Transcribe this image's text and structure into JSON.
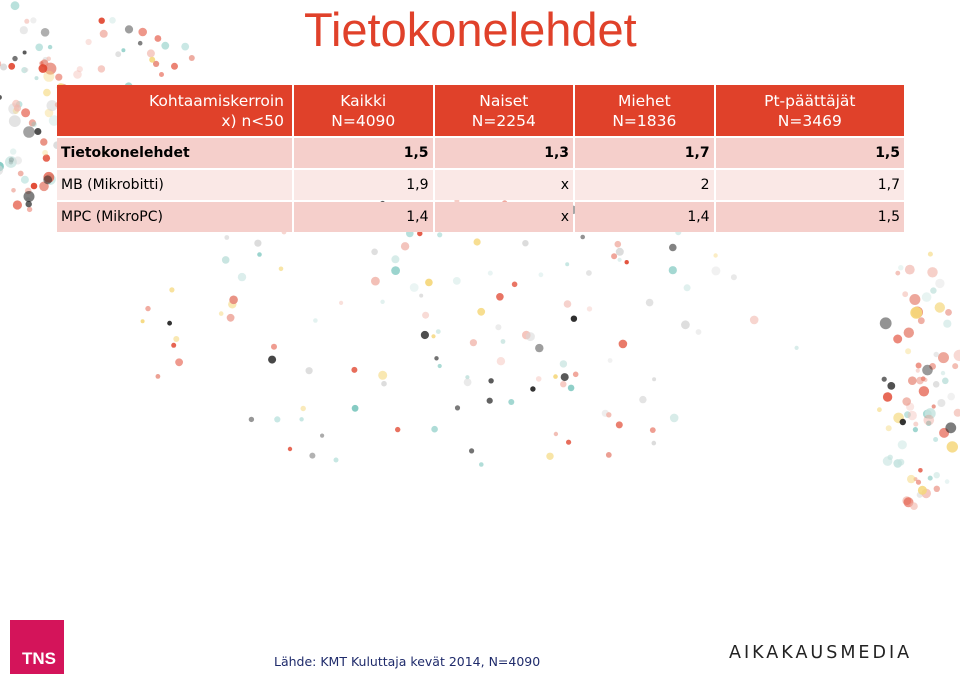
{
  "title": "Tietokonelehdet",
  "table": {
    "header": [
      [
        "Kohtaamiskerroin",
        "x) n<50"
      ],
      [
        "Kaikki",
        "N=4090"
      ],
      [
        "Naiset",
        "N=2254"
      ],
      [
        "Miehet",
        "N=1836"
      ],
      [
        "Pt-päättäjät",
        "N=3469"
      ]
    ],
    "rows": [
      {
        "label": "Tietokonelehdet",
        "values": [
          "1,5",
          "1,3",
          "1,7",
          "1,5"
        ],
        "bold": true
      },
      {
        "label": "MB (Mikrobitti)",
        "values": [
          "1,9",
          "x",
          "2",
          "1,7"
        ],
        "bold": false
      },
      {
        "label": "MPC (MikroPC)",
        "values": [
          "1,4",
          "x",
          "1,4",
          "1,5"
        ],
        "bold": false
      }
    ]
  },
  "source": "Lähde: KMT Kuluttaja kevät 2014, N=4090",
  "logos": {
    "tns": "TNS",
    "aikakausmedia": "AIKAKAUSMEDIA"
  },
  "colors": {
    "accent": "#e0412a",
    "row_dark": "#f5cfcb",
    "row_light": "#fae8e6"
  }
}
